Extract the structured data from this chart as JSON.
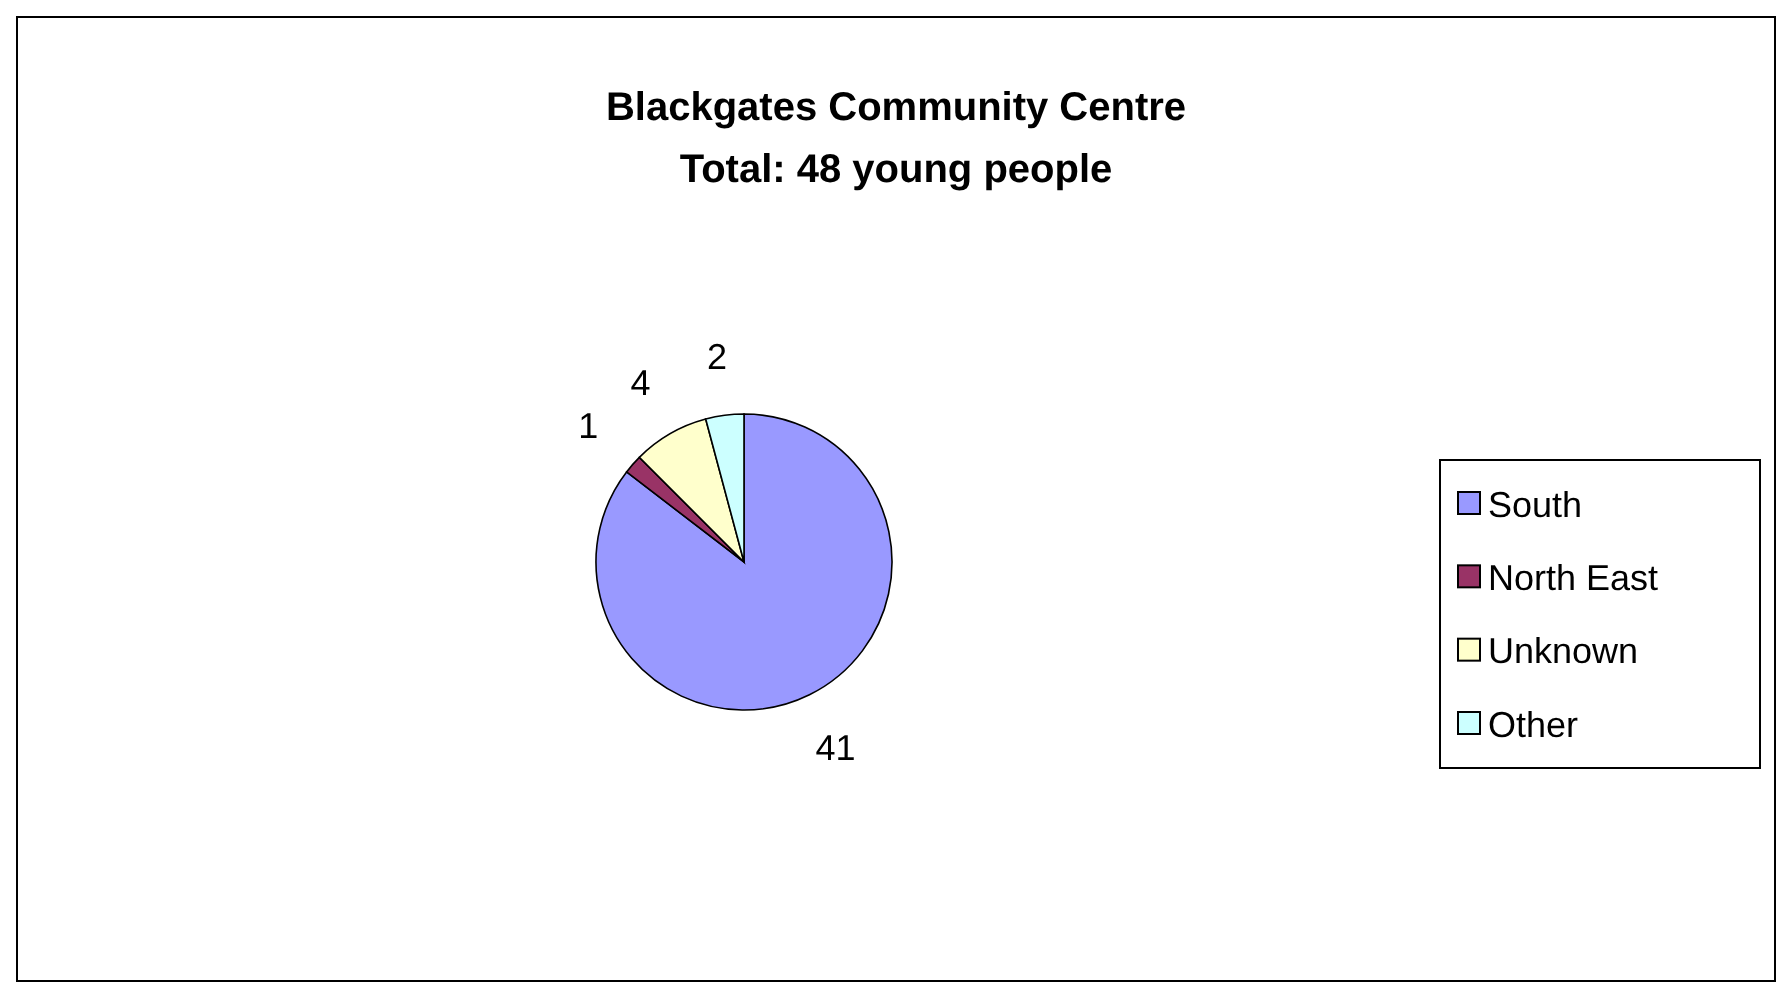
{
  "chart_data": {
    "type": "pie",
    "title": "Blackgates Community Centre",
    "subtitle": "Total: 48 young people",
    "categories": [
      "South",
      "North East",
      "Unknown",
      "Other"
    ],
    "values": [
      41,
      1,
      4,
      2
    ],
    "colors": [
      "#9999ff",
      "#993366",
      "#ffffcc",
      "#ccffff"
    ],
    "data_labels": true,
    "legend": "right"
  }
}
